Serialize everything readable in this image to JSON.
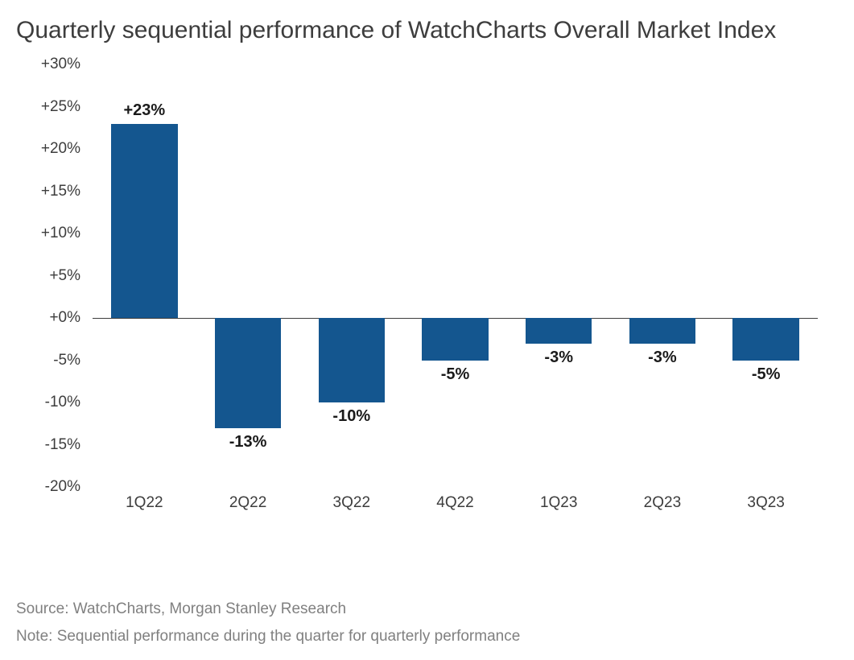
{
  "chart": {
    "type": "bar",
    "title": "Quarterly sequential performance of WatchCharts Overall Market Index",
    "title_fontsize": 30,
    "title_color": "#3d3d3d",
    "background_color": "#ffffff",
    "bar_color": "#14568f",
    "label_color": "#1a1a1a",
    "axis_color": "#3d3d3d",
    "categories": [
      "1Q22",
      "2Q22",
      "3Q22",
      "4Q22",
      "1Q23",
      "2Q23",
      "3Q23"
    ],
    "values": [
      23,
      -13,
      -10,
      -5,
      -3,
      -3,
      -5
    ],
    "value_labels": [
      "+23%",
      "-13%",
      "-10%",
      "-5%",
      "-3%",
      "-3%",
      "-5%"
    ],
    "label_fontsize": 20,
    "label_fontweight": 700,
    "axis_fontsize": 19,
    "ylim": [
      -20,
      30
    ],
    "ytick_step": 5,
    "ytick_labels": [
      "+30%",
      "+25%",
      "+20%",
      "+15%",
      "+10%",
      "+5%",
      "+0%",
      "-5%",
      "-10%",
      "-15%",
      "-20%"
    ],
    "ytick_values": [
      30,
      25,
      20,
      15,
      10,
      5,
      0,
      -5,
      -10,
      -15,
      -20
    ],
    "bar_width_ratio": 0.64,
    "zero_line_color": "#3d3d3d"
  },
  "footer": {
    "source": "Source: WatchCharts, Morgan Stanley Research",
    "note": "Note: Sequential performance during the quarter for quarterly performance",
    "fontsize": 19,
    "color": "#808080"
  }
}
